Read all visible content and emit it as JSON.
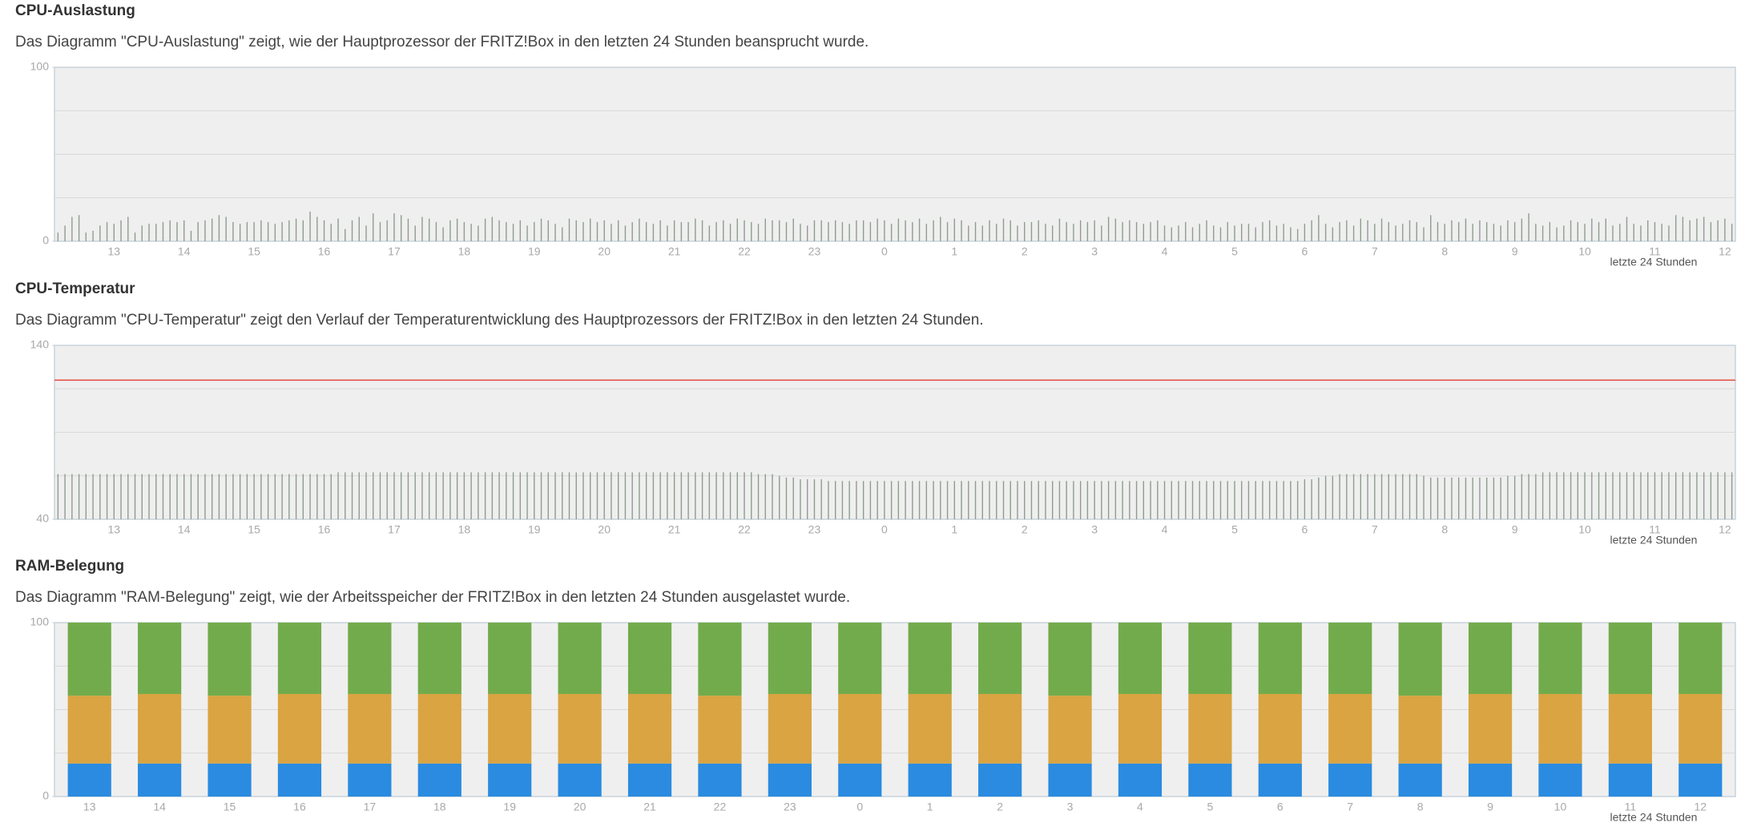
{
  "chart_data": [
    {
      "type": "bar",
      "title": "CPU-Auslastung",
      "subtitle": "Das Diagramm \"CPU-Auslastung\" zeigt, wie der Hauptprozessor der FRITZ!Box in den letzten 24 Stunden beansprucht wurde.",
      "xlabel": "letzte 24 Stunden",
      "categories": [
        null,
        null,
        null,
        null,
        null,
        null,
        null,
        null,
        "13",
        null,
        null,
        null,
        null,
        null,
        null,
        null,
        null,
        null,
        "14",
        null,
        null,
        null,
        null,
        null,
        null,
        null,
        null,
        null,
        "15",
        null,
        null,
        null,
        null,
        null,
        null,
        null,
        null,
        null,
        "16",
        null,
        null,
        null,
        null,
        null,
        null,
        null,
        null,
        null,
        "17",
        null,
        null,
        null,
        null,
        null,
        null,
        null,
        null,
        null,
        "18",
        null,
        null,
        null,
        null,
        null,
        null,
        null,
        null,
        null,
        "19",
        null,
        null,
        null,
        null,
        null,
        null,
        null,
        null,
        null,
        "20",
        null,
        null,
        null,
        null,
        null,
        null,
        null,
        null,
        null,
        "21",
        null,
        null,
        null,
        null,
        null,
        null,
        null,
        null,
        null,
        "22",
        null,
        null,
        null,
        null,
        null,
        null,
        null,
        null,
        null,
        "23",
        null,
        null,
        null,
        null,
        null,
        null,
        null,
        null,
        null,
        "0",
        null,
        null,
        null,
        null,
        null,
        null,
        null,
        null,
        null,
        "1",
        null,
        null,
        null,
        null,
        null,
        null,
        null,
        null,
        null,
        "2",
        null,
        null,
        null,
        null,
        null,
        null,
        null,
        null,
        null,
        "3",
        null,
        null,
        null,
        null,
        null,
        null,
        null,
        null,
        null,
        "4",
        null,
        null,
        null,
        null,
        null,
        null,
        null,
        null,
        null,
        "5",
        null,
        null,
        null,
        null,
        null,
        null,
        null,
        null,
        null,
        "6",
        null,
        null,
        null,
        null,
        null,
        null,
        null,
        null,
        null,
        "7",
        null,
        null,
        null,
        null,
        null,
        null,
        null,
        null,
        null,
        "8",
        null,
        null,
        null,
        null,
        null,
        null,
        null,
        null,
        null,
        "9",
        null,
        null,
        null,
        null,
        null,
        null,
        null,
        null,
        null,
        "10",
        null,
        null,
        null,
        null,
        null,
        null,
        null,
        null,
        null,
        "11",
        null,
        null,
        null,
        null,
        null,
        null,
        null,
        null,
        null,
        "12",
        null
      ],
      "values": [
        5,
        9,
        14,
        15,
        5,
        6,
        9,
        11,
        10,
        12,
        14,
        5,
        9,
        10,
        10,
        11,
        12,
        11,
        12,
        6,
        11,
        12,
        13,
        15,
        14,
        11,
        10,
        11,
        11,
        12,
        11,
        10,
        11,
        12,
        13,
        12,
        17,
        14,
        12,
        10,
        13,
        7,
        12,
        14,
        9,
        16,
        11,
        12,
        16,
        15,
        13,
        9,
        14,
        13,
        11,
        8,
        12,
        13,
        11,
        10,
        9,
        13,
        14,
        12,
        11,
        10,
        12,
        9,
        11,
        13,
        12,
        10,
        8,
        13,
        12,
        11,
        13,
        11,
        12,
        10,
        12,
        9,
        11,
        13,
        11,
        10,
        12,
        9,
        12,
        11,
        11,
        13,
        12,
        9,
        11,
        12,
        10,
        13,
        12,
        11,
        10,
        13,
        12,
        12,
        11,
        13,
        10,
        9,
        12,
        12,
        11,
        12,
        11,
        10,
        12,
        12,
        11,
        13,
        12,
        10,
        13,
        12,
        11,
        13,
        10,
        12,
        14,
        11,
        13,
        12,
        9,
        11,
        9,
        12,
        10,
        13,
        12,
        9,
        11,
        11,
        12,
        10,
        9,
        13,
        11,
        10,
        12,
        11,
        12,
        9,
        14,
        13,
        11,
        12,
        11,
        10,
        11,
        12,
        9,
        8,
        9,
        11,
        8,
        10,
        12,
        9,
        8,
        11,
        9,
        10,
        10,
        8,
        11,
        12,
        9,
        10,
        8,
        7,
        10,
        12,
        15,
        10,
        8,
        11,
        12,
        9,
        13,
        12,
        10,
        13,
        11,
        9,
        10,
        12,
        11,
        8,
        15,
        11,
        10,
        12,
        11,
        13,
        10,
        12,
        11,
        10,
        9,
        12,
        11,
        13,
        16,
        10,
        9,
        11,
        8,
        9,
        12,
        11,
        10,
        13,
        11,
        13,
        9,
        10,
        14,
        10,
        9,
        12,
        11,
        10,
        9,
        15,
        14,
        12,
        13,
        14,
        11,
        12,
        13,
        10
      ],
      "color": "#8f9c8f",
      "ylim": [
        0,
        100
      ],
      "yticks": [
        0,
        100
      ],
      "grid_lines": [
        25,
        50,
        75
      ]
    },
    {
      "type": "bar",
      "title": "CPU-Temperatur",
      "subtitle": "Das Diagramm \"CPU-Temperatur\" zeigt den Verlauf der Temperaturentwicklung des Hauptprozessors der FRITZ!Box in den letzten 24 Stunden.",
      "xlabel": "letzte 24 Stunden",
      "categories": [
        null,
        null,
        null,
        null,
        null,
        null,
        null,
        null,
        "13",
        null,
        null,
        null,
        null,
        null,
        null,
        null,
        null,
        null,
        "14",
        null,
        null,
        null,
        null,
        null,
        null,
        null,
        null,
        null,
        "15",
        null,
        null,
        null,
        null,
        null,
        null,
        null,
        null,
        null,
        "16",
        null,
        null,
        null,
        null,
        null,
        null,
        null,
        null,
        null,
        "17",
        null,
        null,
        null,
        null,
        null,
        null,
        null,
        null,
        null,
        "18",
        null,
        null,
        null,
        null,
        null,
        null,
        null,
        null,
        null,
        "19",
        null,
        null,
        null,
        null,
        null,
        null,
        null,
        null,
        null,
        "20",
        null,
        null,
        null,
        null,
        null,
        null,
        null,
        null,
        null,
        "21",
        null,
        null,
        null,
        null,
        null,
        null,
        null,
        null,
        null,
        "22",
        null,
        null,
        null,
        null,
        null,
        null,
        null,
        null,
        null,
        "23",
        null,
        null,
        null,
        null,
        null,
        null,
        null,
        null,
        null,
        "0",
        null,
        null,
        null,
        null,
        null,
        null,
        null,
        null,
        null,
        "1",
        null,
        null,
        null,
        null,
        null,
        null,
        null,
        null,
        null,
        "2",
        null,
        null,
        null,
        null,
        null,
        null,
        null,
        null,
        null,
        "3",
        null,
        null,
        null,
        null,
        null,
        null,
        null,
        null,
        null,
        "4",
        null,
        null,
        null,
        null,
        null,
        null,
        null,
        null,
        null,
        "5",
        null,
        null,
        null,
        null,
        null,
        null,
        null,
        null,
        null,
        "6",
        null,
        null,
        null,
        null,
        null,
        null,
        null,
        null,
        null,
        "7",
        null,
        null,
        null,
        null,
        null,
        null,
        null,
        null,
        null,
        "8",
        null,
        null,
        null,
        null,
        null,
        null,
        null,
        null,
        null,
        "9",
        null,
        null,
        null,
        null,
        null,
        null,
        null,
        null,
        null,
        "10",
        null,
        null,
        null,
        null,
        null,
        null,
        null,
        null,
        null,
        "11",
        null,
        null,
        null,
        null,
        null,
        null,
        null,
        null,
        null,
        "12",
        null
      ],
      "values": [
        66,
        66,
        66,
        66,
        66,
        66,
        66,
        66,
        66,
        66,
        66,
        66,
        66,
        66,
        66,
        66,
        66,
        66,
        66,
        66,
        66,
        66,
        66,
        66,
        66,
        66,
        66,
        66,
        66,
        66,
        66,
        66,
        66,
        66,
        66,
        66,
        66,
        66,
        66,
        66,
        67,
        67,
        67,
        67,
        67,
        67,
        67,
        67,
        67,
        67,
        67,
        67,
        67,
        67,
        67,
        67,
        67,
        67,
        67,
        67,
        67,
        67,
        67,
        67,
        67,
        67,
        67,
        67,
        67,
        67,
        67,
        67,
        67,
        67,
        67,
        67,
        67,
        67,
        67,
        67,
        67,
        67,
        67,
        67,
        67,
        67,
        67,
        67,
        67,
        67,
        67,
        67,
        67,
        67,
        67,
        67,
        67,
        67,
        67,
        67,
        66,
        66,
        66,
        65,
        64,
        64,
        63,
        63,
        63,
        63,
        62,
        62,
        62,
        62,
        62,
        62,
        62,
        62,
        62,
        62,
        62,
        62,
        62,
        62,
        62,
        62,
        62,
        62,
        62,
        62,
        62,
        62,
        62,
        62,
        62,
        62,
        62,
        62,
        62,
        62,
        62,
        62,
        62,
        62,
        62,
        62,
        62,
        62,
        62,
        62,
        62,
        62,
        62,
        62,
        62,
        62,
        62,
        62,
        62,
        62,
        62,
        62,
        62,
        62,
        62,
        62,
        62,
        62,
        62,
        62,
        62,
        62,
        62,
        62,
        62,
        62,
        62,
        62,
        63,
        63,
        64,
        65,
        65,
        66,
        66,
        66,
        66,
        66,
        66,
        66,
        66,
        66,
        66,
        66,
        66,
        65,
        64,
        64,
        64,
        64,
        64,
        64,
        64,
        64,
        64,
        64,
        64,
        65,
        65,
        66,
        66,
        66,
        67,
        67,
        67,
        67,
        67,
        67,
        67,
        67,
        67,
        67,
        67,
        67,
        67,
        67,
        67,
        67,
        67,
        67,
        67,
        67,
        67,
        67,
        67,
        67,
        67,
        67,
        67,
        67
      ],
      "color": "#8f9c8f",
      "ylim": [
        40,
        140
      ],
      "yticks": [
        40,
        140
      ],
      "grid_lines": [
        65,
        90,
        115
      ],
      "threshold": 120,
      "threshold_color": "#e8483c"
    },
    {
      "type": "stacked_bar",
      "title": "RAM-Belegung",
      "subtitle": "Das Diagramm \"RAM-Belegung\" zeigt, wie der Arbeitsspeicher der FRITZ!Box in den letzten 24 Stunden ausgelastet wurde.",
      "xlabel": "letzte 24 Stunden",
      "categories": [
        "13",
        "14",
        "15",
        "16",
        "17",
        "18",
        "19",
        "20",
        "21",
        "22",
        "23",
        "0",
        "1",
        "2",
        "3",
        "4",
        "5",
        "6",
        "7",
        "8",
        "9",
        "10",
        "11",
        "12"
      ],
      "series": [
        {
          "color": "#2a8be0",
          "values": [
            19,
            19,
            19,
            19,
            19,
            19,
            19,
            19,
            19,
            19,
            19,
            19,
            19,
            19,
            19,
            19,
            19,
            19,
            19,
            19,
            19,
            19,
            19,
            19
          ]
        },
        {
          "color": "#d9a441",
          "values": [
            39,
            40,
            39,
            40,
            40,
            40,
            40,
            40,
            40,
            39,
            40,
            40,
            40,
            40,
            39,
            40,
            40,
            40,
            40,
            39,
            40,
            40,
            40,
            40
          ]
        },
        {
          "color": "#72ab4b",
          "values": [
            42,
            41,
            42,
            41,
            41,
            41,
            41,
            41,
            41,
            42,
            41,
            41,
            41,
            41,
            42,
            41,
            41,
            41,
            41,
            42,
            41,
            41,
            41,
            41
          ]
        }
      ],
      "ylim": [
        0,
        100
      ],
      "yticks": [
        0,
        100
      ],
      "grid_lines": [
        25,
        50,
        75
      ]
    }
  ]
}
